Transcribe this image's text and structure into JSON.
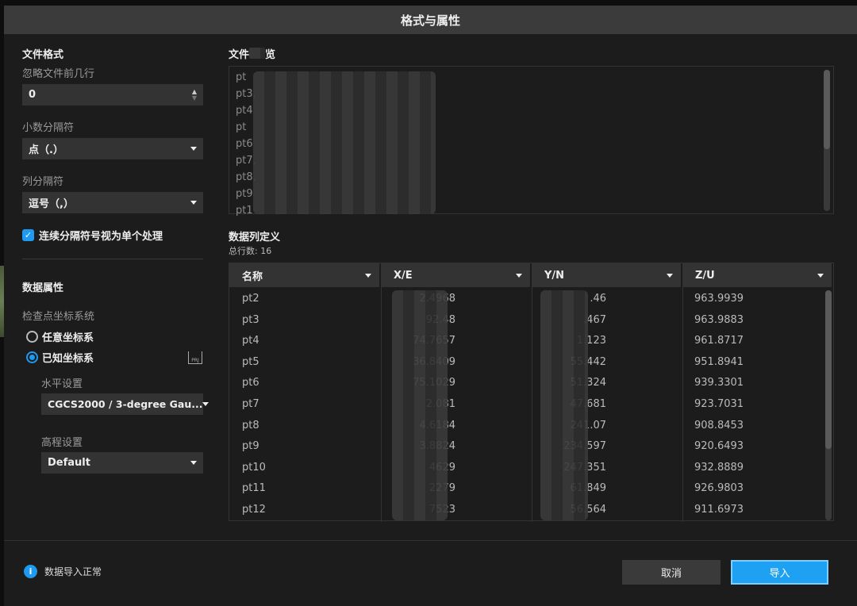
{
  "dialog": {
    "title": "格式与属性"
  },
  "file_format": {
    "heading": "文件格式",
    "skip_rows_label": "忽略文件前几行",
    "skip_rows_value": "0",
    "decimal_label": "小数分隔符",
    "decimal_value": "点（.）",
    "column_sep_label": "列分隔符",
    "column_sep_value": "逗号（,）",
    "merge_sep_label": "连续分隔符号视为单个处理",
    "merge_sep_checked": true
  },
  "data_props": {
    "heading": "数据属性",
    "crs_label": "检查点坐标系统",
    "option_any": "任意坐标系",
    "option_known": "已知坐标系",
    "selected": "已知坐标系",
    "import_prj_icon": "prj-import-icon",
    "horizontal_label": "水平设置",
    "horizontal_value": "CGCS2000 / 3-degree Gau...",
    "vertical_label": "高程设置",
    "vertical_value": "Default"
  },
  "preview": {
    "title_start": "文件",
    "title_end": "览",
    "lines": [
      "pt",
      "pt3,",
      "pt4",
      "pt",
      "pt6",
      "pt7,",
      "pt8,",
      "pt9",
      "pt1"
    ]
  },
  "columns": {
    "heading": "数据列定义",
    "total_rows": "总行数: 16",
    "headers": [
      "名称",
      "X/E",
      "Y/N",
      "Z/U"
    ],
    "rows": [
      [
        "pt2",
        "2.4968",
        ".46",
        "963.9939"
      ],
      [
        "pt3",
        "92.48",
        ".467",
        "963.9883"
      ],
      [
        "pt4",
        "74.7657",
        "1.123",
        "961.8717"
      ],
      [
        "pt5",
        "36.8409",
        "55.442",
        "951.8941"
      ],
      [
        "pt6",
        "75.1029",
        "51.324",
        "939.3301"
      ],
      [
        "pt7",
        "2.081",
        "47.681",
        "923.7031"
      ],
      [
        "pt8",
        "4.6184",
        "241.07",
        "908.8453"
      ],
      [
        "pt9",
        "3.8824",
        "234.597",
        "920.6493"
      ],
      [
        "pt10",
        "4629",
        "247.351",
        "932.8889"
      ],
      [
        "pt11",
        "2279",
        "61.849",
        "926.9803"
      ],
      [
        "pt12",
        "7523",
        "56.564",
        "911.6973"
      ]
    ]
  },
  "footer": {
    "status": "数据导入正常",
    "cancel": "取消",
    "import": "导入"
  },
  "colors": {
    "accent": "#1e9af0",
    "bg": "#1c1c1c",
    "titlebar": "#3b3b3b"
  }
}
